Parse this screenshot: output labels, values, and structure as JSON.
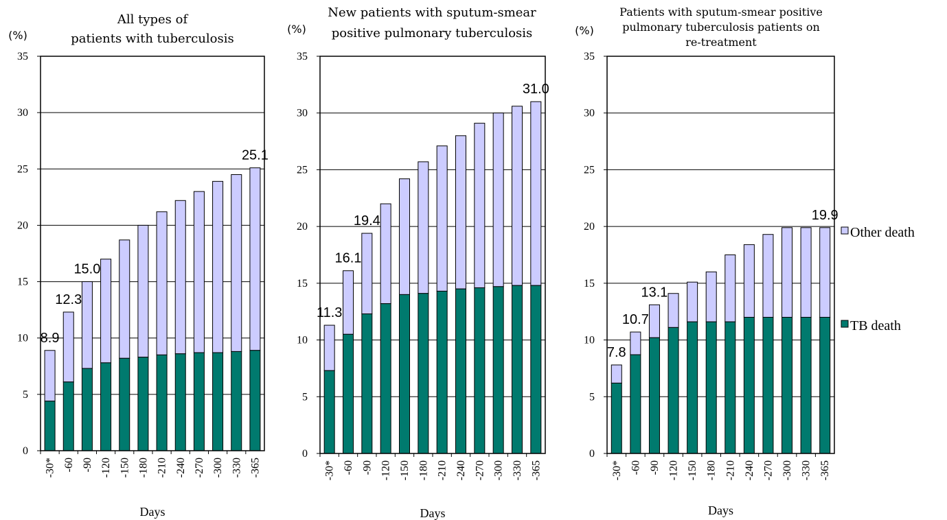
{
  "legend": {
    "other_label": "Other death",
    "tb_label": "TB death",
    "other_color": "#ccccff",
    "tb_color": "#007a6e"
  },
  "chart_data": [
    {
      "type": "bar",
      "stacked": true,
      "title": "All types of patients with tuberculosis",
      "title_lines": [
        "All types of",
        "patients with tuberculosis"
      ],
      "unit": "(%)",
      "xlabel": "Days",
      "ylim": [
        0,
        35
      ],
      "yticks": [
        0,
        5,
        10,
        15,
        20,
        25,
        30,
        35
      ],
      "categories": [
        "-30*",
        "-60",
        "-90",
        "-120",
        "-150",
        "-180",
        "-210",
        "-240",
        "-270",
        "-300",
        "-330",
        "-365"
      ],
      "series": [
        {
          "name": "TB death",
          "values": [
            4.4,
            6.1,
            7.3,
            7.8,
            8.2,
            8.3,
            8.5,
            8.6,
            8.7,
            8.7,
            8.8,
            8.9
          ]
        },
        {
          "name": "Other death",
          "values": [
            4.5,
            6.2,
            7.7,
            9.2,
            10.5,
            11.7,
            12.7,
            13.6,
            14.3,
            15.2,
            15.7,
            16.2
          ]
        }
      ],
      "annotations": [
        {
          "category": "-30*",
          "text": "8.9"
        },
        {
          "category": "-60",
          "text": "12.3"
        },
        {
          "category": "-90",
          "text": "15.0"
        },
        {
          "category": "-365",
          "text": "25.1"
        }
      ]
    },
    {
      "type": "bar",
      "stacked": true,
      "title": "New patients with sputum-smear positive pulmonary tuberculosis",
      "title_lines": [
        "New patients with sputum-smear",
        "positive pulmonary tuberculosis"
      ],
      "unit": "(%)",
      "xlabel": "Days",
      "ylim": [
        0,
        35
      ],
      "yticks": [
        0,
        5,
        10,
        15,
        20,
        25,
        30,
        35
      ],
      "categories": [
        "-30*",
        "-60",
        "-90",
        "-120",
        "-150",
        "-180",
        "-210",
        "-240",
        "-270",
        "-300",
        "-330",
        "-365"
      ],
      "series": [
        {
          "name": "TB death",
          "values": [
            7.3,
            10.5,
            12.3,
            13.2,
            14.0,
            14.1,
            14.3,
            14.5,
            14.6,
            14.7,
            14.8,
            14.8
          ]
        },
        {
          "name": "Other death",
          "values": [
            4.0,
            5.6,
            7.1,
            8.8,
            10.2,
            11.6,
            12.8,
            13.5,
            14.5,
            15.3,
            15.8,
            16.2
          ]
        }
      ],
      "annotations": [
        {
          "category": "-30*",
          "text": "11.3"
        },
        {
          "category": "-60",
          "text": "16.1"
        },
        {
          "category": "-90",
          "text": "19.4"
        },
        {
          "category": "-365",
          "text": "31.0"
        }
      ]
    },
    {
      "type": "bar",
      "stacked": true,
      "title": "Patients with sputum-smear positive pulmonary tuberculosis patients on re-treatment",
      "title_lines": [
        "Patients with sputum-smear positive",
        "pulmonary tuberculosis patients on",
        "re-treatment"
      ],
      "unit": "(%)",
      "xlabel": "Days",
      "ylim": [
        0,
        35
      ],
      "yticks": [
        0,
        5,
        10,
        15,
        20,
        25,
        30,
        35
      ],
      "categories": [
        "-30*",
        "-60",
        "-90",
        "-120",
        "-150",
        "-180",
        "-210",
        "-240",
        "-270",
        "-300",
        "-330",
        "-365"
      ],
      "series": [
        {
          "name": "TB death",
          "values": [
            6.2,
            8.7,
            10.2,
            11.1,
            11.6,
            11.6,
            11.6,
            12.0,
            12.0,
            12.0,
            12.0,
            12.0
          ]
        },
        {
          "name": "Other death",
          "values": [
            1.6,
            2.0,
            2.9,
            3.0,
            3.5,
            4.4,
            5.9,
            6.4,
            7.3,
            7.9,
            7.9,
            7.9
          ]
        }
      ],
      "annotations": [
        {
          "category": "-30*",
          "text": "7.8"
        },
        {
          "category": "-60",
          "text": "10.7"
        },
        {
          "category": "-90",
          "text": "13.1"
        },
        {
          "category": "-365",
          "text": "19.9"
        }
      ]
    }
  ]
}
